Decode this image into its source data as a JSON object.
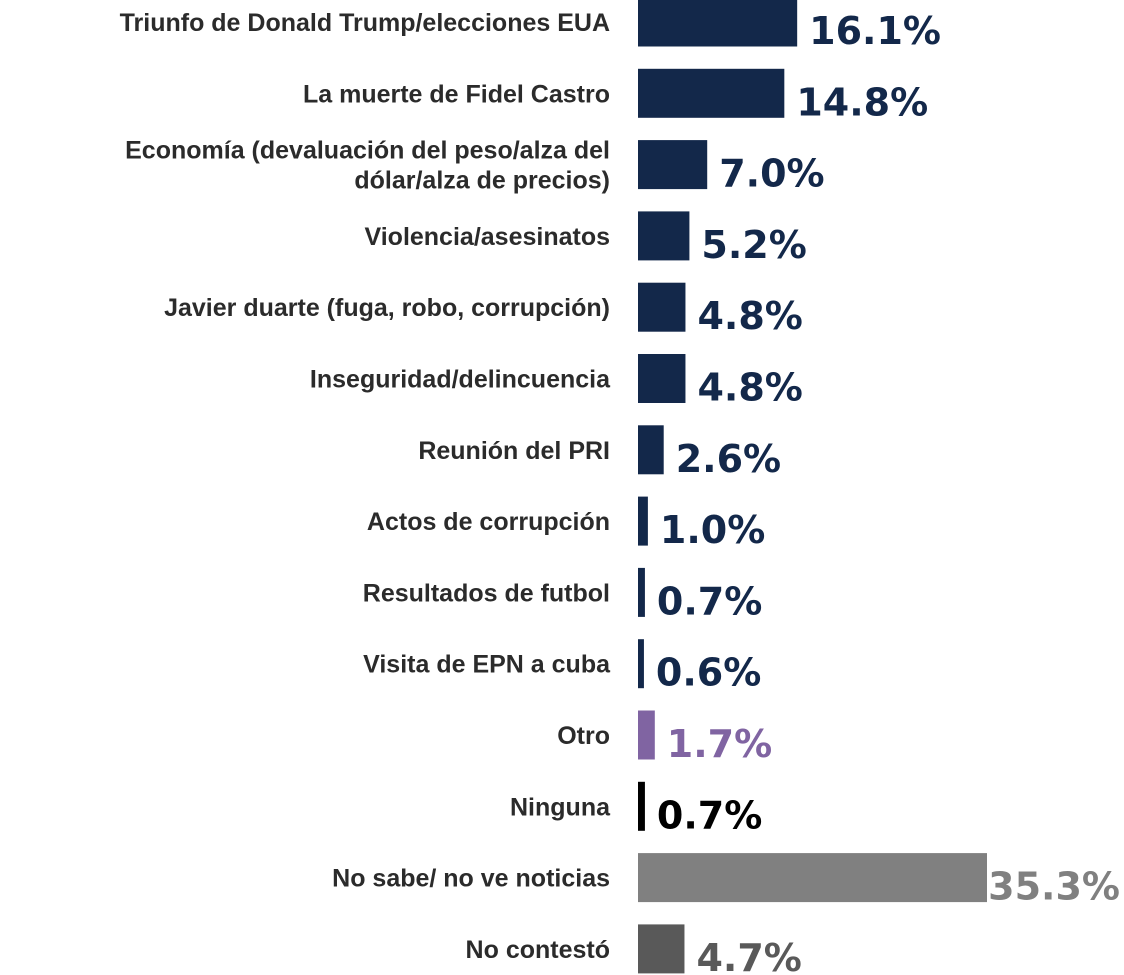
{
  "chart_data": {
    "type": "bar",
    "orientation": "horizontal",
    "categories": [
      "Triunfo de Donald Trump/elecciones EUA",
      "La muerte de Fidel Castro",
      "Economía (devaluación del peso/alza del dólar/alza de precios)",
      "Violencia/asesinatos",
      "Javier duarte (fuga, robo, corrupción)",
      "Inseguridad/delincuencia",
      "Reunión del PRI",
      "Actos de corrupción",
      "Resultados de futbol",
      "Visita de EPN a cuba",
      "Otro",
      "Ninguna",
      "No sabe/ no ve noticias",
      "No contestó"
    ],
    "category_lines": [
      [
        "Triunfo de Donald Trump/elecciones EUA"
      ],
      [
        "La muerte de Fidel Castro"
      ],
      [
        "Economía (devaluación del peso/alza del",
        "dólar/alza de precios)"
      ],
      [
        "Violencia/asesinatos"
      ],
      [
        "Javier duarte (fuga, robo, corrupción)"
      ],
      [
        "Inseguridad/delincuencia"
      ],
      [
        "Reunión del PRI"
      ],
      [
        "Actos de corrupción"
      ],
      [
        "Resultados de futbol"
      ],
      [
        "Visita de EPN a cuba"
      ],
      [
        "Otro"
      ],
      [
        "Ninguna"
      ],
      [
        "No sabe/ no ve noticias"
      ],
      [
        "No contestó"
      ]
    ],
    "values": [
      16.1,
      14.8,
      7.0,
      5.2,
      4.8,
      4.8,
      2.6,
      1.0,
      0.7,
      0.6,
      1.7,
      0.7,
      35.3,
      4.7
    ],
    "value_labels": [
      "16.1%",
      "14.8%",
      "7.0%",
      "5.2%",
      "4.8%",
      "4.8%",
      "2.6%",
      "1.0%",
      "0.7%",
      "0.6%",
      "1.7%",
      "0.7%",
      "35.3%",
      "4.7%"
    ],
    "bar_colors": [
      "#13284a",
      "#13284a",
      "#13284a",
      "#13284a",
      "#13284a",
      "#13284a",
      "#13284a",
      "#13284a",
      "#13284a",
      "#13284a",
      "#8064a2",
      "#000000",
      "#808080",
      "#595959"
    ],
    "label_colors": [
      "#13284a",
      "#13284a",
      "#13284a",
      "#13284a",
      "#13284a",
      "#13284a",
      "#13284a",
      "#13284a",
      "#13284a",
      "#13284a",
      "#8064a2",
      "#000000",
      "#808080",
      "#595959"
    ],
    "unit": "%",
    "xlim": [
      0,
      35.3
    ],
    "grid": false,
    "legend": "none",
    "title": "",
    "xlabel": "",
    "ylabel": ""
  }
}
